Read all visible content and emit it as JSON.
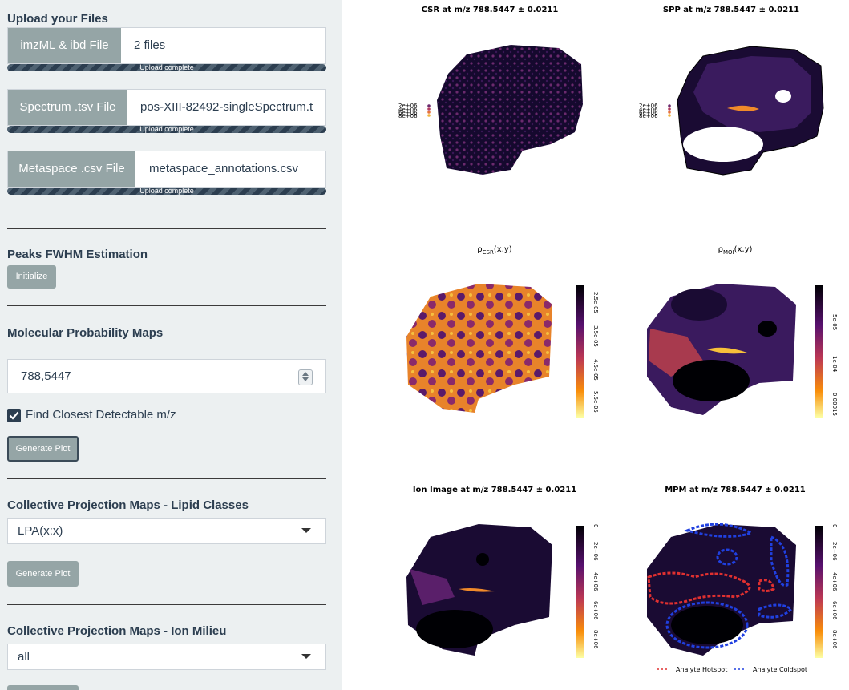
{
  "sidebar": {
    "upload_title": "Upload your Files",
    "uploads": [
      {
        "button": "imzML & ibd File",
        "filename": "2 files",
        "progress": "Upload complete",
        "progress_fraction": 1.0
      },
      {
        "button": "Spectrum .tsv File",
        "filename": "pos-XIII-82492-singleSpectrum.t",
        "progress": "Upload complete",
        "progress_fraction": 1.0
      },
      {
        "button": "Metaspace .csv File",
        "filename": "metaspace_annotations.csv",
        "progress": "Upload complete",
        "progress_fraction": 1.0
      }
    ],
    "fwhm": {
      "title": "Peaks FWHM Estimation",
      "button": "Initialize"
    },
    "mpm": {
      "title": "Molecular Probability Maps",
      "mz_value": "788,5447",
      "checkbox_label": "Find Closest Detectable m/z",
      "checkbox_checked": true,
      "button": "Generate Plot"
    },
    "cpm_lipid": {
      "title": "Collective Projection Maps - Lipid Classes",
      "selected": "LPA(x:x)",
      "button": "Generate Plot"
    },
    "cpm_ion": {
      "title": "Collective Projection Maps - Ion Milieu",
      "selected": "all"
    }
  },
  "plots": {
    "csr_title": "CSR at m/z 788.5447 ± 0.0211",
    "spp_title": "SPP at m/z 788.5447 ± 0.0211",
    "rho_csr_title": "ρ",
    "rho_csr_sub": "CSR",
    "rho_csr_tail": "(x,y)",
    "rho_moi_title": "ρ",
    "rho_moi_sub": "MOI",
    "rho_moi_tail": "(x,y)",
    "ion_title": "Ion Image at m/z 788.5447 ± 0.0211",
    "mpm_title": "MPM at m/z 788.5447 ± 0.0211",
    "small_legend": [
      "2e+06",
      "4e+06",
      "6e+06",
      "8e+06"
    ],
    "rho_csr_ticks": [
      "2.5e-05",
      "3.5e-05",
      "4.5e-05",
      "5.5e-05"
    ],
    "rho_moi_ticks": [
      "5e-05",
      "1e-04",
      "0.00015"
    ],
    "ion_ticks": [
      "0",
      "2e+06",
      "4e+06",
      "6e+06",
      "8e+06"
    ],
    "mpm_ticks": [
      "0",
      "2e+06",
      "4e+06",
      "6e+06",
      "8e+06"
    ],
    "legend_hotspot": "Analyte Hotspot",
    "legend_coldspot": "Analyte Coldspot",
    "colors": {
      "hotspot": "#e03030",
      "coldspot": "#2040e0",
      "inferno_dark": "#1a0b33",
      "inferno_mid": "#c03a5a",
      "inferno_bright": "#f6d746"
    }
  }
}
